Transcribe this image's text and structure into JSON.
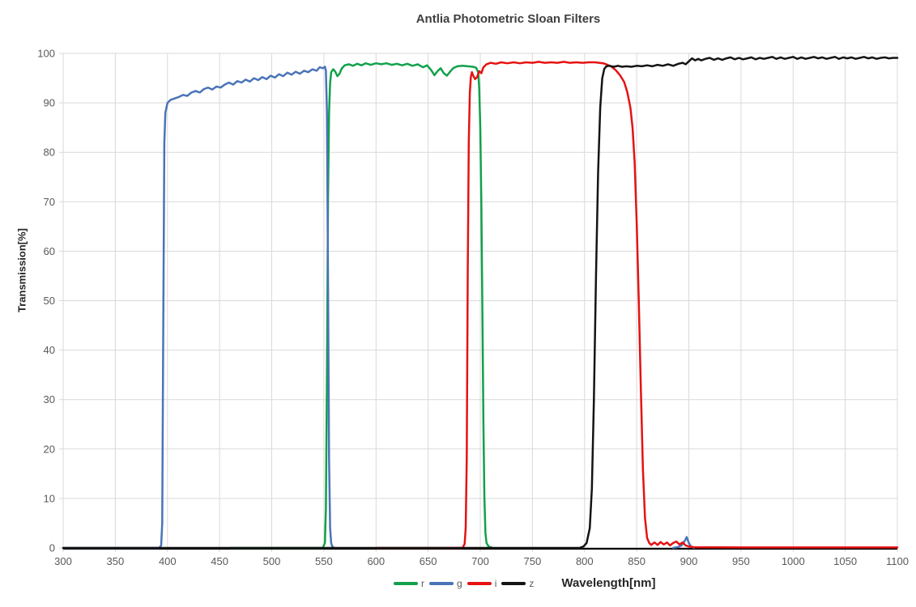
{
  "chart_data": {
    "type": "line",
    "title": "Antlia Photometric Sloan Filters",
    "xlabel": "Wavelength[nm]",
    "ylabel": "Transmission[%]",
    "xlim": [
      300,
      1100
    ],
    "ylim": [
      0,
      100
    ],
    "x_ticks": [
      300,
      350,
      400,
      450,
      500,
      550,
      600,
      650,
      700,
      750,
      800,
      850,
      900,
      950,
      1000,
      1050,
      1100
    ],
    "y_ticks": [
      0,
      10,
      20,
      30,
      40,
      50,
      60,
      70,
      80,
      90,
      100
    ],
    "grid": true,
    "grid_color": "#d9d9d9",
    "axis_color": "#000000",
    "tick_label_color": "#595959",
    "legend_position": "bottom",
    "series": [
      {
        "name": "r",
        "color": "#12a14b",
        "points": [
          [
            460,
            0
          ],
          [
            549,
            0
          ],
          [
            551,
            1
          ],
          [
            552,
            8
          ],
          [
            553,
            35
          ],
          [
            554,
            70
          ],
          [
            555,
            88
          ],
          [
            556,
            94
          ],
          [
            557,
            96.2
          ],
          [
            559,
            96.8
          ],
          [
            561,
            96.3
          ],
          [
            563,
            95.4
          ],
          [
            565,
            95.9
          ],
          [
            567,
            96.9
          ],
          [
            570,
            97.6
          ],
          [
            574,
            97.8
          ],
          [
            578,
            97.5
          ],
          [
            582,
            97.9
          ],
          [
            586,
            97.6
          ],
          [
            590,
            98.0
          ],
          [
            595,
            97.7
          ],
          [
            600,
            98.0
          ],
          [
            605,
            97.8
          ],
          [
            610,
            98.0
          ],
          [
            615,
            97.7
          ],
          [
            620,
            97.9
          ],
          [
            625,
            97.6
          ],
          [
            630,
            97.9
          ],
          [
            635,
            97.5
          ],
          [
            640,
            97.8
          ],
          [
            645,
            97.2
          ],
          [
            649,
            97.6
          ],
          [
            653,
            96.6
          ],
          [
            656,
            95.6
          ],
          [
            659,
            96.4
          ],
          [
            662,
            97.0
          ],
          [
            665,
            96.0
          ],
          [
            668,
            95.5
          ],
          [
            671,
            96.3
          ],
          [
            674,
            97.0
          ],
          [
            678,
            97.4
          ],
          [
            683,
            97.5
          ],
          [
            688,
            97.4
          ],
          [
            693,
            97.3
          ],
          [
            696,
            97.1
          ],
          [
            698,
            96.2
          ],
          [
            699,
            93
          ],
          [
            700,
            85
          ],
          [
            701,
            70
          ],
          [
            702,
            48
          ],
          [
            703,
            25
          ],
          [
            704,
            10
          ],
          [
            705,
            3
          ],
          [
            706,
            1
          ],
          [
            708,
            0.3
          ],
          [
            712,
            0
          ]
        ]
      },
      {
        "name": "g",
        "color": "#4a74b8",
        "points": [
          [
            300,
            0
          ],
          [
            392,
            0
          ],
          [
            394,
            0.5
          ],
          [
            395,
            5
          ],
          [
            396,
            45
          ],
          [
            397,
            82
          ],
          [
            398,
            88
          ],
          [
            400,
            90
          ],
          [
            403,
            90.6
          ],
          [
            407,
            90.9
          ],
          [
            411,
            91.2
          ],
          [
            415,
            91.6
          ],
          [
            419,
            91.4
          ],
          [
            423,
            92.1
          ],
          [
            427,
            92.4
          ],
          [
            431,
            92.1
          ],
          [
            435,
            92.8
          ],
          [
            439,
            93.1
          ],
          [
            443,
            92.7
          ],
          [
            447,
            93.3
          ],
          [
            451,
            93.1
          ],
          [
            455,
            93.7
          ],
          [
            459,
            94.1
          ],
          [
            463,
            93.7
          ],
          [
            467,
            94.4
          ],
          [
            471,
            94.1
          ],
          [
            475,
            94.7
          ],
          [
            479,
            94.3
          ],
          [
            483,
            95.0
          ],
          [
            487,
            94.6
          ],
          [
            491,
            95.2
          ],
          [
            495,
            94.8
          ],
          [
            499,
            95.5
          ],
          [
            503,
            95.1
          ],
          [
            507,
            95.8
          ],
          [
            511,
            95.4
          ],
          [
            515,
            96.1
          ],
          [
            519,
            95.7
          ],
          [
            523,
            96.3
          ],
          [
            527,
            95.9
          ],
          [
            531,
            96.5
          ],
          [
            535,
            96.2
          ],
          [
            539,
            96.8
          ],
          [
            543,
            96.5
          ],
          [
            546,
            97.2
          ],
          [
            549,
            97.0
          ],
          [
            551,
            97.3
          ],
          [
            552,
            96.5
          ],
          [
            553,
            88
          ],
          [
            554,
            55
          ],
          [
            555,
            18
          ],
          [
            556,
            4
          ],
          [
            557,
            1
          ],
          [
            558,
            0.3
          ],
          [
            560,
            0
          ],
          null,
          [
            885,
            0
          ],
          [
            890,
            0.2
          ],
          [
            893,
            0.5
          ],
          [
            896,
            1.4
          ],
          [
            898,
            2.2
          ],
          [
            900,
            1.0
          ],
          [
            902,
            0.3
          ],
          [
            905,
            0
          ]
        ]
      },
      {
        "name": "i",
        "color": "#e51212",
        "points": [
          [
            600,
            0
          ],
          [
            683,
            0
          ],
          [
            685,
            0.8
          ],
          [
            686,
            4
          ],
          [
            687,
            18
          ],
          [
            688,
            55
          ],
          [
            689,
            82
          ],
          [
            690,
            92
          ],
          [
            691,
            95.3
          ],
          [
            692,
            96.2
          ],
          [
            693,
            95.6
          ],
          [
            695,
            94.8
          ],
          [
            697,
            95.2
          ],
          [
            699,
            96.4
          ],
          [
            701,
            96.0
          ],
          [
            703,
            97.2
          ],
          [
            706,
            97.8
          ],
          [
            710,
            98.1
          ],
          [
            715,
            97.9
          ],
          [
            720,
            98.2
          ],
          [
            726,
            98.0
          ],
          [
            732,
            98.2
          ],
          [
            738,
            98.0
          ],
          [
            744,
            98.2
          ],
          [
            750,
            98.1
          ],
          [
            756,
            98.3
          ],
          [
            762,
            98.1
          ],
          [
            768,
            98.2
          ],
          [
            774,
            98.1
          ],
          [
            780,
            98.3
          ],
          [
            786,
            98.1
          ],
          [
            792,
            98.2
          ],
          [
            798,
            98.1
          ],
          [
            804,
            98.2
          ],
          [
            810,
            98.2
          ],
          [
            814,
            98.1
          ],
          [
            818,
            98.0
          ],
          [
            822,
            97.7
          ],
          [
            826,
            97.3
          ],
          [
            830,
            96.6
          ],
          [
            834,
            95.6
          ],
          [
            838,
            94.2
          ],
          [
            841,
            92.2
          ],
          [
            844,
            89
          ],
          [
            846,
            85
          ],
          [
            848,
            78
          ],
          [
            850,
            66
          ],
          [
            852,
            50
          ],
          [
            854,
            32
          ],
          [
            856,
            16
          ],
          [
            858,
            6
          ],
          [
            860,
            2
          ],
          [
            862,
            1.0
          ],
          [
            864,
            0.6
          ],
          [
            867,
            1.1
          ],
          [
            870,
            0.6
          ],
          [
            873,
            1.2
          ],
          [
            876,
            0.7
          ],
          [
            879,
            1.1
          ],
          [
            882,
            0.5
          ],
          [
            885,
            1.0
          ],
          [
            888,
            1.3
          ],
          [
            891,
            0.7
          ],
          [
            894,
            1.1
          ],
          [
            897,
            0.5
          ],
          [
            900,
            0.3
          ],
          [
            905,
            0.15
          ],
          [
            950,
            0.1
          ],
          [
            1000,
            0.1
          ],
          [
            1050,
            0.1
          ],
          [
            1100,
            0.1
          ]
        ]
      },
      {
        "name": "z",
        "color": "#141414",
        "points": [
          [
            300,
            0
          ],
          [
            795,
            0
          ],
          [
            799,
            0.3
          ],
          [
            802,
            1
          ],
          [
            805,
            4
          ],
          [
            807,
            12
          ],
          [
            809,
            30
          ],
          [
            811,
            55
          ],
          [
            813,
            76
          ],
          [
            815,
            89
          ],
          [
            817,
            95
          ],
          [
            819,
            96.9
          ],
          [
            821,
            97.4
          ],
          [
            824,
            97.5
          ],
          [
            828,
            97.3
          ],
          [
            832,
            97.5
          ],
          [
            836,
            97.3
          ],
          [
            840,
            97.4
          ],
          [
            845,
            97.3
          ],
          [
            850,
            97.5
          ],
          [
            855,
            97.4
          ],
          [
            860,
            97.6
          ],
          [
            865,
            97.4
          ],
          [
            870,
            97.7
          ],
          [
            875,
            97.5
          ],
          [
            880,
            97.8
          ],
          [
            885,
            97.5
          ],
          [
            890,
            97.9
          ],
          [
            894,
            98.1
          ],
          [
            897,
            97.8
          ],
          [
            900,
            98.4
          ],
          [
            903,
            99.0
          ],
          [
            906,
            98.6
          ],
          [
            909,
            98.9
          ],
          [
            912,
            98.6
          ],
          [
            916,
            98.9
          ],
          [
            920,
            99.1
          ],
          [
            924,
            98.7
          ],
          [
            928,
            99.0
          ],
          [
            932,
            98.7
          ],
          [
            936,
            99.0
          ],
          [
            940,
            99.2
          ],
          [
            944,
            98.8
          ],
          [
            948,
            99.1
          ],
          [
            952,
            98.8
          ],
          [
            956,
            99.0
          ],
          [
            960,
            99.2
          ],
          [
            964,
            98.8
          ],
          [
            968,
            99.1
          ],
          [
            972,
            98.9
          ],
          [
            976,
            99.1
          ],
          [
            980,
            99.3
          ],
          [
            984,
            98.9
          ],
          [
            988,
            99.2
          ],
          [
            992,
            98.9
          ],
          [
            996,
            99.1
          ],
          [
            1000,
            99.3
          ],
          [
            1004,
            98.9
          ],
          [
            1008,
            99.2
          ],
          [
            1012,
            98.9
          ],
          [
            1016,
            99.1
          ],
          [
            1020,
            99.3
          ],
          [
            1024,
            99.0
          ],
          [
            1028,
            99.2
          ],
          [
            1032,
            98.9
          ],
          [
            1036,
            99.1
          ],
          [
            1040,
            99.3
          ],
          [
            1044,
            98.9
          ],
          [
            1048,
            99.2
          ],
          [
            1052,
            99.0
          ],
          [
            1056,
            99.2
          ],
          [
            1060,
            98.9
          ],
          [
            1064,
            99.1
          ],
          [
            1068,
            99.3
          ],
          [
            1072,
            99.0
          ],
          [
            1076,
            99.2
          ],
          [
            1080,
            98.9
          ],
          [
            1084,
            99.1
          ],
          [
            1088,
            99.2
          ],
          [
            1092,
            99.0
          ],
          [
            1096,
            99.1
          ],
          [
            1100,
            99.1
          ]
        ]
      }
    ]
  }
}
